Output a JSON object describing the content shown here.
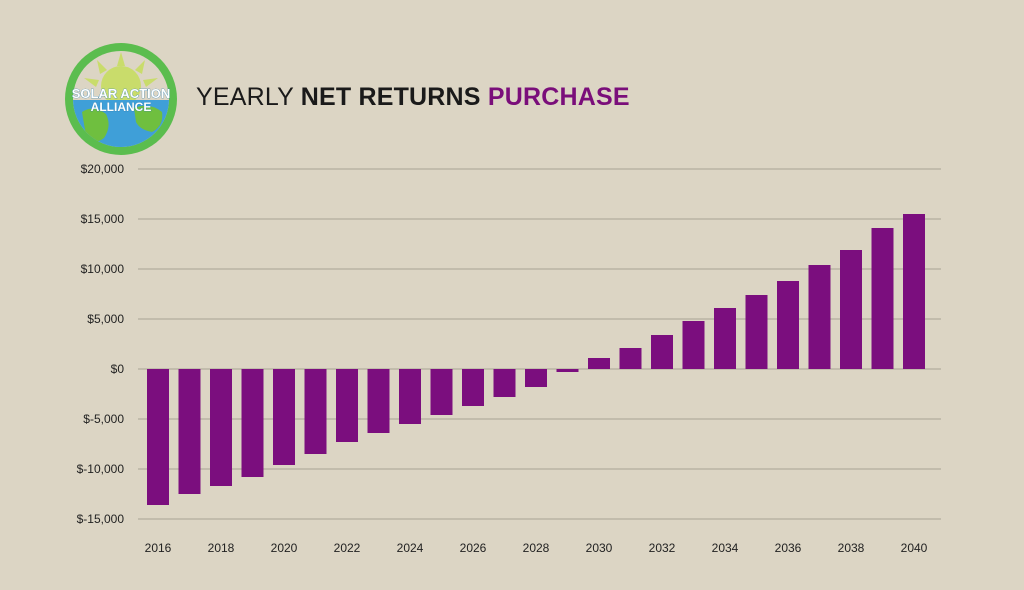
{
  "logo": {
    "line1": "SOLAR ACTION",
    "line2": "ALLIANCE",
    "colors": {
      "ring": "#5bbd4e",
      "sun": "#c9dc6b",
      "water": "#3f9fd8",
      "land": "#6fbf3f",
      "band": "#ffffff",
      "text": "#ffffff"
    }
  },
  "title": {
    "part1": "YEARLY ",
    "part2": "NET RETURNS ",
    "part3": "PURCHASE"
  },
  "chart_data": {
    "type": "bar",
    "categories": [
      "2016",
      "2017",
      "2018",
      "2019",
      "2020",
      "2021",
      "2022",
      "2023",
      "2024",
      "2025",
      "2026",
      "2027",
      "2028",
      "2029",
      "2030",
      "2031",
      "2032",
      "2033",
      "2034",
      "2035",
      "2036",
      "2037",
      "2038",
      "2039",
      "2040"
    ],
    "values": [
      -13600,
      -12500,
      -11700,
      -10800,
      -9600,
      -8500,
      -7300,
      -6400,
      -5500,
      -4600,
      -3700,
      -2800,
      -1800,
      -300,
      1100,
      2100,
      3400,
      4800,
      6100,
      7400,
      8800,
      10400,
      11900,
      14100,
      15500
    ],
    "x_tick_labels": [
      "2016",
      "2018",
      "2020",
      "2022",
      "2024",
      "2026",
      "2028",
      "2030",
      "2032",
      "2034",
      "2036",
      "2038",
      "2040"
    ],
    "y_ticks": [
      20000,
      15000,
      10000,
      5000,
      0,
      -5000,
      -10000,
      -15000
    ],
    "y_tick_labels": [
      "$20,000",
      "$15,000",
      "$10,000",
      "$5,000",
      "$0",
      "$-5,000",
      "$-10,000",
      "$-15,000"
    ],
    "ylim": [
      -15000,
      20000
    ],
    "grid": true,
    "legend": "none",
    "title": "",
    "xlabel": "",
    "ylabel": "",
    "colors": {
      "bar": "#7b0e7e",
      "grid": "#a9a395",
      "axis": "#8a8476"
    }
  }
}
